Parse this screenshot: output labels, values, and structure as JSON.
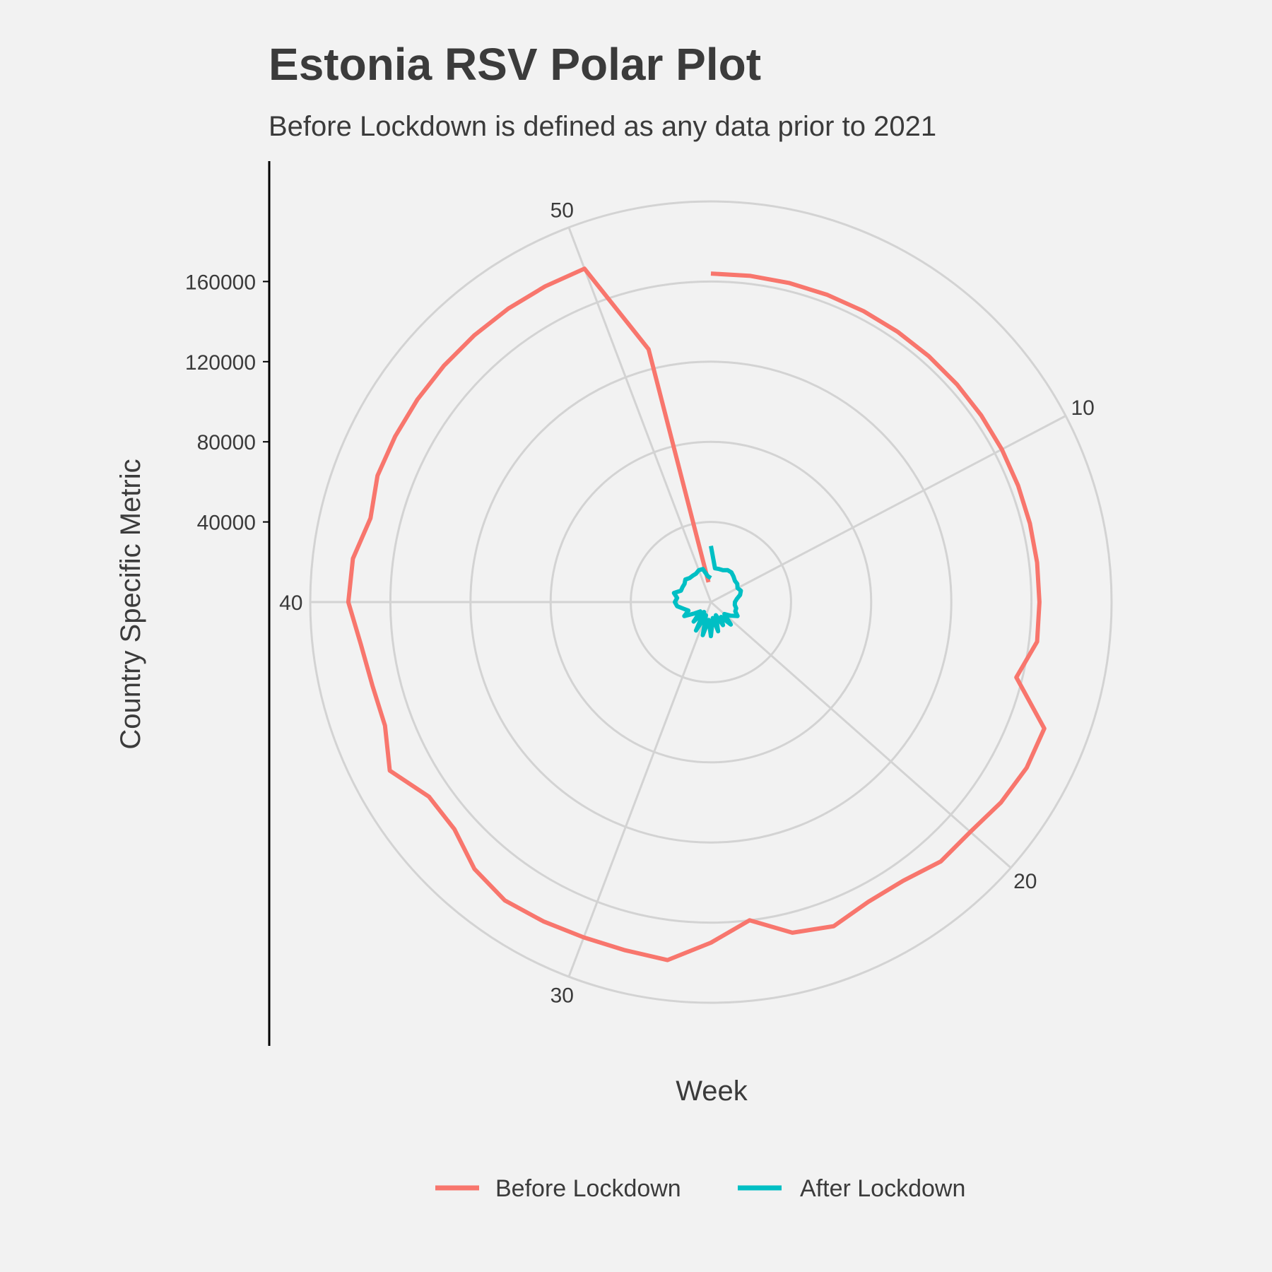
{
  "chart_data": {
    "type": "line",
    "coordinate_system": "polar",
    "title": "Estonia RSV Polar Plot",
    "subtitle": "Before Lockdown is defined as any data prior to 2021",
    "xlabel": "Week",
    "ylabel": "Country Specific Metric",
    "x_ticks": [
      10,
      20,
      30,
      40,
      50
    ],
    "x_range": [
      1,
      53
    ],
    "y_ticks": [
      40000,
      80000,
      120000,
      160000
    ],
    "y_range": [
      0,
      200000
    ],
    "grid": true,
    "legend": {
      "position": "bottom",
      "entries": [
        "Before Lockdown",
        "After Lockdown"
      ]
    },
    "colors": {
      "Before Lockdown": "#f8766d",
      "After Lockdown": "#00bfc4",
      "grid": "#d3d3d3",
      "background": "#f2f2f2"
    },
    "series": [
      {
        "name": "Before Lockdown",
        "weeks": [
          1,
          2,
          3,
          4,
          5,
          6,
          7,
          8,
          9,
          10,
          11,
          12,
          13,
          14,
          15,
          16,
          17,
          18,
          19,
          20,
          21,
          22,
          23,
          24,
          25,
          26,
          27,
          28,
          29,
          30,
          31,
          32,
          33,
          34,
          35,
          36,
          37,
          38,
          39,
          40,
          41,
          42,
          43,
          44,
          45,
          46,
          47,
          48,
          49,
          50,
          51,
          52
        ],
        "values": [
          164000,
          164000,
          164000,
          164000,
          164000,
          164000,
          164000,
          164000,
          164000,
          164000,
          164000,
          164000,
          164000,
          164000,
          164000,
          157000,
          178000,
          178000,
          176000,
          173000,
          173000,
          169000,
          169000,
          173000,
          170000,
          160000,
          170000,
          180000,
          179000,
          179000,
          180000,
          181000,
          178000,
          171000,
          171000,
          181000,
          174000,
          174000,
          176000,
          181000,
          180000,
          175000,
          178000,
          178000,
          178000,
          178000,
          178000,
          178000,
          178000,
          178000,
          130000,
          10000
        ]
      },
      {
        "name": "After Lockdown",
        "weeks": [
          1,
          2,
          3,
          4,
          5,
          6,
          7,
          8,
          9,
          10,
          11,
          12,
          13,
          14,
          15,
          16,
          17,
          18,
          19,
          20,
          21,
          22,
          23,
          24,
          25,
          26,
          27,
          28,
          29,
          30,
          31,
          32,
          33,
          34,
          35,
          36,
          37,
          38,
          39,
          40,
          41,
          42,
          43,
          44,
          45,
          46,
          47,
          48,
          49,
          50,
          51,
          52,
          53
        ],
        "values": [
          28000,
          17000,
          17000,
          17000,
          18000,
          18000,
          17000,
          16000,
          16000,
          15000,
          16000,
          15000,
          13000,
          12000,
          12000,
          13000,
          13000,
          15000,
          12000,
          9000,
          15000,
          9000,
          13000,
          7000,
          15000,
          8000,
          17000,
          9000,
          17000,
          7000,
          16000,
          6000,
          13000,
          7000,
          10000,
          15000,
          12000,
          14000,
          17000,
          18000,
          17000,
          19000,
          16000,
          16000,
          16000,
          17000,
          16000,
          16000,
          16000,
          17000,
          17000,
          13000,
          12000
        ]
      }
    ]
  }
}
